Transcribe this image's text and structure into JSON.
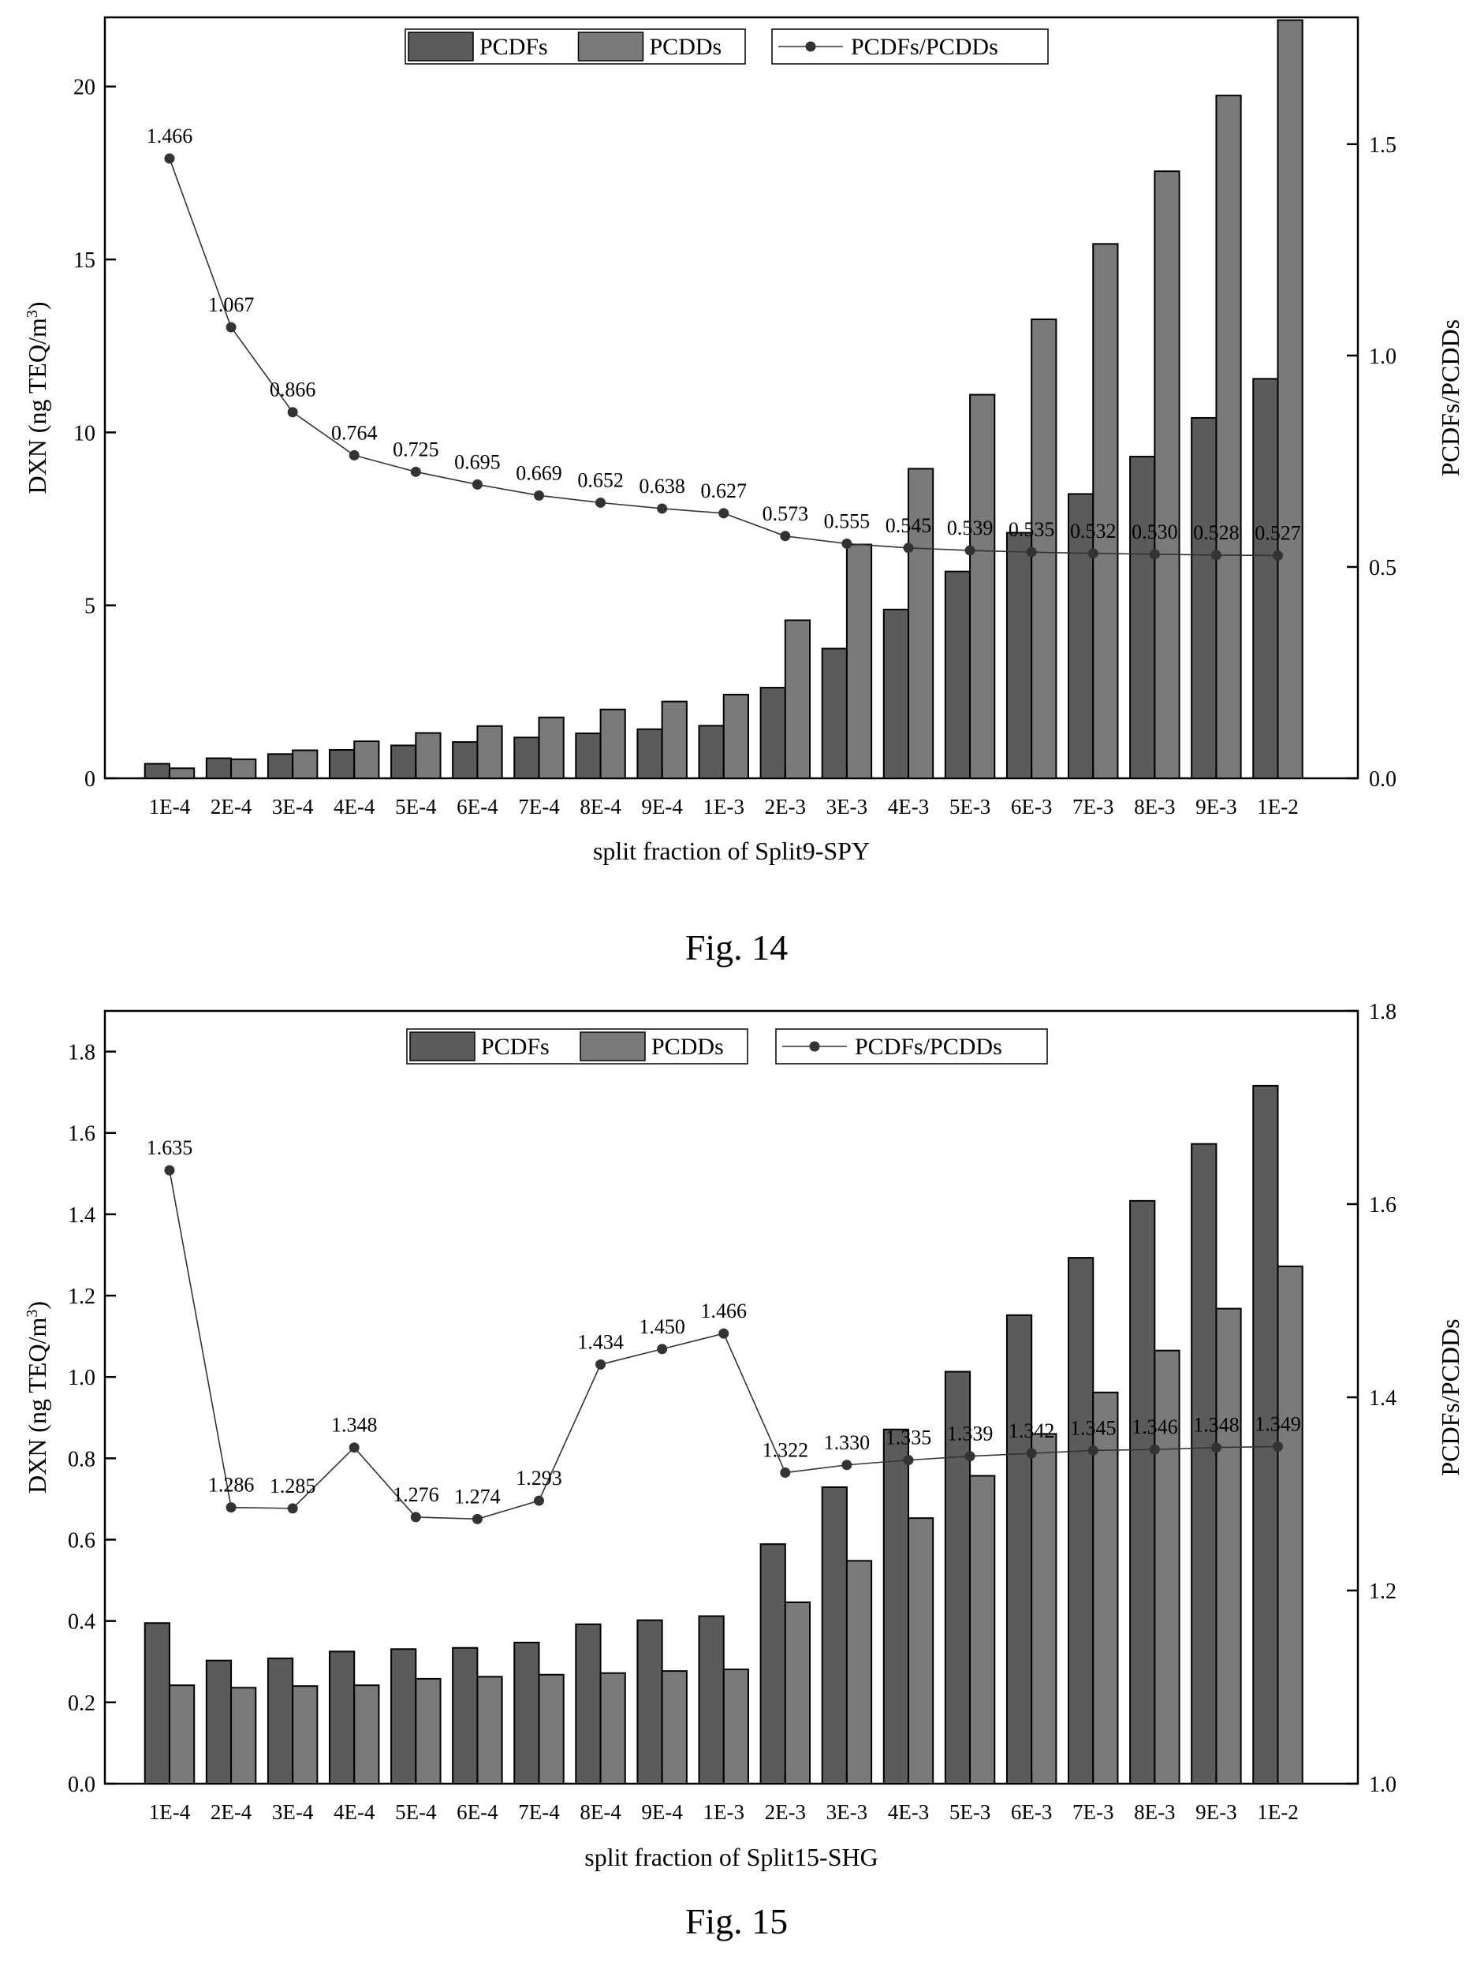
{
  "chart_data": [
    {
      "type": "bar",
      "figure_caption": "Fig. 14",
      "xlabel": "split fraction of  Split9-SPY",
      "ylabel_left": "DXN  (ng TEQ/m",
      "ylabel_left_sup": "3",
      "ylabel_left_close": ")",
      "ylabel_right": "PCDFs/PCDDs",
      "categories": [
        "1E-4",
        "2E-4",
        "3E-4",
        "4E-4",
        "5E-4",
        "6E-4",
        "7E-4",
        "8E-4",
        "9E-4",
        "1E-3",
        "2E-3",
        "3E-3",
        "4E-3",
        "5E-3",
        "6E-3",
        "7E-3",
        "8E-3",
        "9E-3",
        "1E-2"
      ],
      "ylim_left": [
        0,
        22
      ],
      "yticks_left": [
        "0",
        "5",
        "10",
        "15",
        "20"
      ],
      "ylim_right": [
        0,
        1.8
      ],
      "yticks_right": [
        "0.0",
        "0.5",
        "1.0",
        "1.5"
      ],
      "legend": {
        "pcdfs": "PCDFs",
        "pcdds": "PCDDs",
        "ratio": "PCDFs/PCDDs"
      },
      "series": [
        {
          "name": "PCDFs",
          "axis": "left",
          "values": [
            0.42,
            0.58,
            0.7,
            0.82,
            0.95,
            1.05,
            1.18,
            1.3,
            1.42,
            1.52,
            2.62,
            3.75,
            4.88,
            5.98,
            7.1,
            8.22,
            9.3,
            10.42,
            11.55
          ],
          "color": "#5b5b5b"
        },
        {
          "name": "PCDDs",
          "axis": "left",
          "values": [
            0.29,
            0.55,
            0.81,
            1.07,
            1.31,
            1.51,
            1.76,
            1.99,
            2.22,
            2.42,
            4.57,
            6.76,
            8.95,
            11.09,
            13.27,
            15.45,
            17.55,
            19.74,
            21.92
          ],
          "color": "#7a7a7a"
        },
        {
          "name": "PCDFs/PCDDs",
          "axis": "right",
          "type": "line",
          "values": [
            1.466,
            1.067,
            0.866,
            0.764,
            0.725,
            0.695,
            0.669,
            0.652,
            0.638,
            0.627,
            0.573,
            0.555,
            0.545,
            0.539,
            0.535,
            0.532,
            0.53,
            0.528,
            0.527
          ],
          "labels": [
            "1.466",
            "1.067",
            "0.866",
            "0.764",
            "0.725",
            "0.695",
            "0.669",
            "0.652",
            "0.638",
            "0.627",
            "0.573",
            "0.555",
            "0.545",
            "0.539",
            "0.535",
            "0.532",
            "0.530",
            "0.528",
            "0.527"
          ]
        }
      ]
    },
    {
      "type": "bar",
      "figure_caption": "Fig. 15",
      "xlabel": "split fraction of Split15-SHG",
      "ylabel_left": "DXN  (ng TEQ/m",
      "ylabel_left_sup": "3",
      "ylabel_left_close": ")",
      "ylabel_right": "PCDFs/PCDDs",
      "categories": [
        "1E-4",
        "2E-4",
        "3E-4",
        "4E-4",
        "5E-4",
        "6E-4",
        "7E-4",
        "8E-4",
        "9E-4",
        "1E-3",
        "2E-3",
        "3E-3",
        "4E-3",
        "5E-3",
        "6E-3",
        "7E-3",
        "8E-3",
        "9E-3",
        "1E-2"
      ],
      "ylim_left": [
        0,
        1.9
      ],
      "yticks_left": [
        "0.0",
        "0.2",
        "0.4",
        "0.6",
        "0.8",
        "1.0",
        "1.2",
        "1.4",
        "1.6",
        "1.8"
      ],
      "ylim_right": [
        1.0,
        1.8
      ],
      "yticks_right": [
        "1.0",
        "1.2",
        "1.4",
        "1.6",
        "1.8"
      ],
      "legend": {
        "pcdfs": "PCDFs",
        "pcdds": "PCDDs",
        "ratio": "PCDFs/PCDDs"
      },
      "series": [
        {
          "name": "PCDFs",
          "axis": "left",
          "values": [
            0.395,
            0.303,
            0.308,
            0.325,
            0.331,
            0.334,
            0.347,
            0.392,
            0.402,
            0.412,
            0.589,
            0.729,
            0.871,
            1.013,
            1.152,
            1.293,
            1.433,
            1.573,
            1.716
          ],
          "color": "#5b5b5b"
        },
        {
          "name": "PCDDs",
          "axis": "left",
          "values": [
            0.242,
            0.236,
            0.24,
            0.242,
            0.258,
            0.263,
            0.268,
            0.272,
            0.277,
            0.281,
            0.446,
            0.548,
            0.653,
            0.757,
            0.86,
            0.962,
            1.065,
            1.168,
            1.272
          ],
          "color": "#7a7a7a"
        },
        {
          "name": "PCDFs/PCDDs",
          "axis": "right",
          "type": "line",
          "values": [
            1.635,
            1.286,
            1.285,
            1.348,
            1.276,
            1.274,
            1.293,
            1.434,
            1.45,
            1.466,
            1.322,
            1.33,
            1.335,
            1.339,
            1.342,
            1.345,
            1.346,
            1.348,
            1.349
          ],
          "labels": [
            "1.635",
            "1.286",
            "1.285",
            "1.348",
            "1.276",
            "1.274",
            "1.293",
            "1.434",
            "1.450",
            "1.466",
            "1.322",
            "1.330",
            "1.335",
            "1.339",
            "1.342",
            "1.345",
            "1.346",
            "1.348",
            "1.349"
          ]
        }
      ]
    }
  ]
}
